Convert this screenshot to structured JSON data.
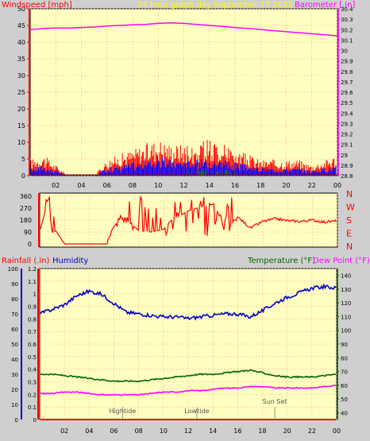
{
  "colors": {
    "background": "#cfcfcf",
    "plot_background": "#ffffc0",
    "windspeed": "#ff0000",
    "gust_fill": "#0000ff",
    "wind_green": "#008000",
    "barometer": "#ff00ff",
    "title_yellow": "#ffff00",
    "rainfall": "#ff0000",
    "humidity": "#0000c8",
    "temperature": "#006400",
    "dew_point": "#ff00ff",
    "grid": "#ffaaaa"
  },
  "chart_data": [
    {
      "type": "line",
      "title": "24 hour graph day   September 17 2022",
      "left_label": "Windspeed [mph]",
      "right_label": "Barometer [.in]",
      "x_ticks": [
        "02",
        "04",
        "06",
        "08",
        "10",
        "12",
        "14",
        "16",
        "18",
        "20",
        "22",
        "00"
      ],
      "x_range_hours": [
        0,
        24
      ],
      "y_left": {
        "range": [
          0,
          50
        ],
        "ticks": [
          "0",
          "5",
          "10",
          "15",
          "20",
          "25",
          "30",
          "35",
          "40",
          "45",
          "50"
        ]
      },
      "y_right": {
        "range": [
          28.8,
          30.4
        ],
        "ticks": [
          "28.8",
          "28.9",
          "29",
          "29.1",
          "29.2",
          "29.3",
          "29.4",
          "29.5",
          "29.6",
          "29.7",
          "29.8",
          "29.9",
          "30",
          "30.1",
          "30.2",
          "30.3",
          "30.4"
        ]
      },
      "series": [
        {
          "axis": "right",
          "x": [
            0,
            1,
            2,
            3,
            4,
            5,
            6,
            7,
            8,
            9,
            10,
            11,
            12,
            13,
            14,
            15,
            16,
            17,
            18,
            19,
            20,
            21,
            22,
            23,
            24
          ],
          "values": [
            30.2,
            30.21,
            30.215,
            30.215,
            30.22,
            30.225,
            30.235,
            30.24,
            30.245,
            30.25,
            30.26,
            30.265,
            30.26,
            30.25,
            30.24,
            30.23,
            30.22,
            30.21,
            30.2,
            30.19,
            30.18,
            30.17,
            30.16,
            30.15,
            30.14
          ]
        },
        {
          "axis": "left",
          "x": [
            0,
            1,
            2,
            3,
            4,
            5,
            6,
            7,
            8,
            9,
            10,
            11,
            12,
            13,
            14,
            15,
            16,
            17,
            18,
            19,
            20,
            21,
            22,
            23,
            24
          ],
          "values": [
            3,
            4,
            2,
            0,
            0,
            0,
            3,
            4,
            5,
            6,
            7,
            6,
            6,
            6,
            7,
            6,
            5,
            4,
            3,
            3,
            3,
            3,
            2,
            3,
            4
          ]
        }
      ]
    },
    {
      "type": "line",
      "y_ticks": [
        "0",
        "90",
        "180",
        "270",
        "360"
      ],
      "y_range": [
        0,
        360
      ],
      "compass_labels": [
        "N",
        "W",
        "S",
        "E",
        "N"
      ],
      "x_ticks": [
        "02",
        "04",
        "06",
        "08",
        "10",
        "12",
        "14",
        "16",
        "18",
        "20",
        "22",
        "00"
      ],
      "series": [
        {
          "x": [
            0,
            0.7,
            1,
            1.3,
            2,
            3,
            4,
            5,
            5.5,
            6,
            6.5,
            7,
            8,
            9,
            10,
            10.5,
            11,
            12,
            13,
            14,
            15,
            16,
            17,
            18,
            19,
            20,
            21,
            22,
            23,
            24
          ],
          "values": [
            90,
            340,
            80,
            100,
            0,
            0,
            0,
            0,
            60,
            120,
            200,
            180,
            100,
            90,
            110,
            170,
            200,
            250,
            280,
            300,
            120,
            200,
            120,
            170,
            190,
            175,
            170,
            180,
            165,
            175
          ]
        }
      ]
    },
    {
      "type": "line",
      "left_label": "Rainfall (.in)",
      "humidity_label": "Humidity",
      "right_label": "Temperature (°F)",
      "right_label_2": "Dew Point (°F)",
      "y_left_rain": {
        "range": [
          0,
          1.2
        ],
        "ticks": [
          "0",
          "0.1",
          "0.2",
          "0.3",
          "0.4",
          "0.5",
          "0.6",
          "0.7",
          "0.8",
          "0.9",
          "1",
          "1.1",
          "1.2"
        ]
      },
      "y_left_humidity": {
        "range": [
          0,
          100
        ],
        "ticks": [
          "0",
          "10",
          "20",
          "30",
          "40",
          "50",
          "60",
          "70",
          "80",
          "90",
          "100"
        ]
      },
      "y_right": {
        "range": [
          35,
          145
        ],
        "ticks": [
          "40",
          "50",
          "60",
          "70",
          "80",
          "90",
          "100",
          "110",
          "120",
          "130",
          "140"
        ]
      },
      "x_ticks": [
        "02",
        "04",
        "06",
        "08",
        "10",
        "12",
        "14",
        "16",
        "18",
        "20",
        "22",
        "00"
      ],
      "annotations": [
        {
          "label": "Hightide",
          "hour": 6.7
        },
        {
          "label": "Lowtide",
          "hour": 12.7
        },
        {
          "label": "Sun Set",
          "hour": 19.0
        }
      ],
      "series": [
        {
          "name": "Humidity",
          "axis": "humidity",
          "x": [
            0,
            1,
            2,
            3,
            4,
            5,
            6,
            7,
            8,
            9,
            10,
            11,
            12,
            13,
            14,
            15,
            16,
            17,
            18,
            19,
            20,
            21,
            22,
            23,
            24
          ],
          "values": [
            70,
            73,
            76,
            82,
            85,
            83,
            77,
            71,
            70,
            69,
            68,
            68,
            67,
            68,
            69,
            70,
            70,
            68,
            72,
            77,
            81,
            84,
            87,
            88,
            87
          ]
        },
        {
          "name": "Temperature (°F)",
          "axis": "right",
          "x": [
            0,
            1,
            2,
            3,
            4,
            5,
            6,
            7,
            8,
            9,
            10,
            11,
            12,
            13,
            14,
            15,
            16,
            17,
            18,
            19,
            20,
            21,
            22,
            23,
            24
          ],
          "values": [
            68,
            68,
            67,
            66,
            65,
            64,
            63,
            63,
            63,
            64,
            65,
            66,
            67,
            68,
            68,
            69,
            70,
            71,
            69,
            67,
            66,
            66,
            66,
            67,
            68
          ]
        },
        {
          "name": "Dew Point (°F)",
          "axis": "right",
          "x": [
            0,
            1,
            2,
            3,
            4,
            5,
            6,
            7,
            8,
            9,
            10,
            11,
            12,
            13,
            14,
            15,
            16,
            17,
            18,
            19,
            20,
            21,
            22,
            23,
            24
          ],
          "values": [
            54,
            54,
            55,
            55,
            54,
            53,
            53,
            53,
            53,
            54,
            55,
            55,
            56,
            56,
            57,
            58,
            58,
            59,
            59,
            58,
            58,
            58,
            58,
            59,
            60
          ]
        },
        {
          "name": "Rainfall (.in)",
          "axis": "rain",
          "x": [
            0,
            24
          ],
          "values": [
            0,
            0
          ]
        }
      ]
    }
  ]
}
